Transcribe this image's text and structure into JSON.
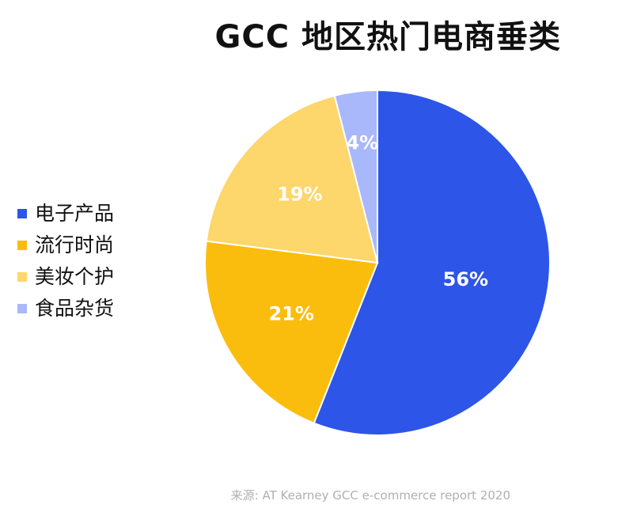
{
  "header": {
    "title": "GCC 地区热门电商垂类"
  },
  "chart_data": {
    "type": "pie",
    "title": "GCC 地区热门电商垂类",
    "start_angle_deg": 0,
    "direction": "clockwise",
    "legend_position": "left",
    "slices": [
      {
        "name": "电子产品",
        "value": 56,
        "label": "56%",
        "color": "#2d55e8"
      },
      {
        "name": "流行时尚",
        "value": 21,
        "label": "21%",
        "color": "#fbbd0d"
      },
      {
        "name": "美妆个护",
        "value": 19,
        "label": "19%",
        "color": "#fdd66c"
      },
      {
        "name": "食品杂货",
        "value": 4,
        "label": "4%",
        "color": "#a9b8fb"
      }
    ]
  },
  "footer": {
    "source": "来源: AT Kearney GCC e-commerce report 2020"
  }
}
